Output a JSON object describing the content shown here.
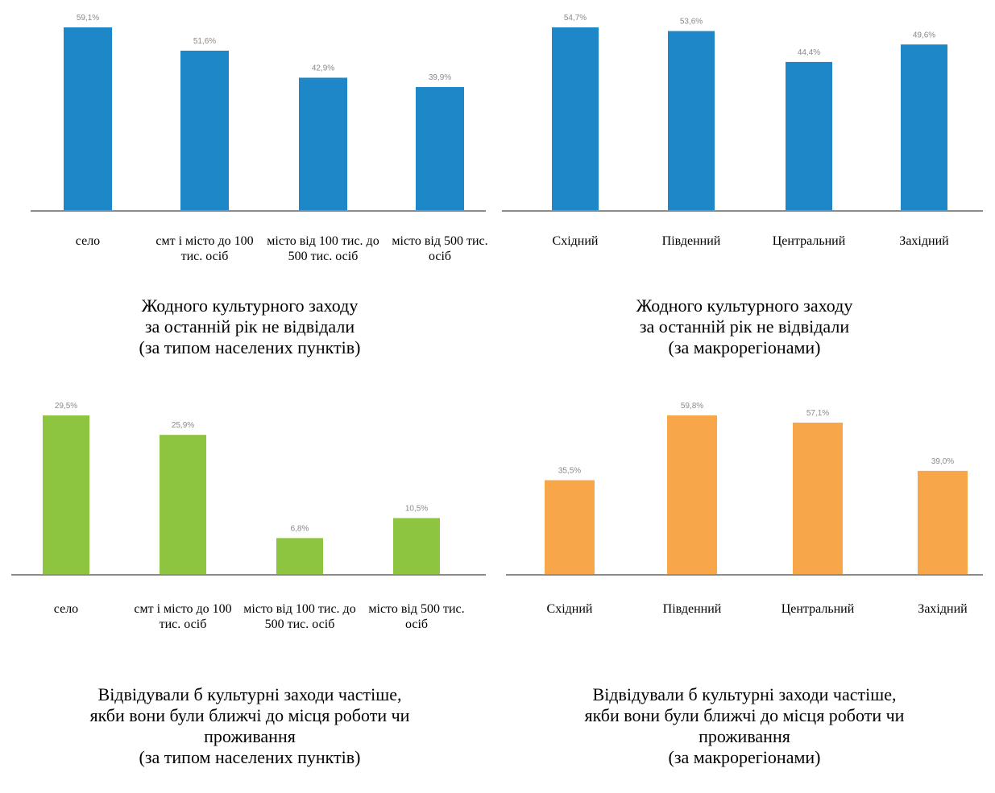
{
  "colors": {
    "blue": "#1e87c8",
    "green": "#8dc540",
    "orange": "#f7a64a",
    "axis": "#8c8c8c"
  },
  "chart_data": [
    {
      "type": "bar",
      "categories": [
        "село",
        "смт і місто до 100 тис. осіб",
        "місто від 100 тис. до 500 тис. осіб",
        "місто від 500 тис. осіб"
      ],
      "values": [
        59.1,
        51.6,
        42.9,
        39.9
      ],
      "value_labels": [
        "59,1%",
        "51,6%",
        "42,9%",
        "39,9%"
      ],
      "title_lines": [
        "Жодного культурного заходу",
        "за останній рік не відвідали",
        "(за типом населених пунктів)"
      ],
      "ylim": [
        0,
        66
      ],
      "color": "#1e87c8",
      "grid": false
    },
    {
      "type": "bar",
      "categories": [
        "Східний",
        "Південний",
        "Центральний",
        "Західний"
      ],
      "values": [
        54.7,
        53.6,
        44.4,
        49.6
      ],
      "value_labels": [
        "54,7%",
        "53,6%",
        "44,4%",
        "49,6%"
      ],
      "title_lines": [
        "Жодного культурного заходу",
        "за останній рік не відвідали",
        "(за макрорегіонами)"
      ],
      "ylim": [
        0,
        66
      ],
      "color": "#1e87c8",
      "grid": false
    },
    {
      "type": "bar",
      "categories": [
        "село",
        "смт і місто до 100 тис. осіб",
        "місто від 100 тис. до 500 тис. осіб",
        "місто від 500 тис. осіб"
      ],
      "values": [
        29.5,
        25.9,
        6.8,
        10.5
      ],
      "value_labels": [
        "29,5%",
        "25,9%",
        "6,8%",
        "10,5%"
      ],
      "title_lines": [
        "Відвідували б культурні заходи частіше,",
        "якби вони були ближчі до місця роботи чи",
        "проживання",
        "(за типом населених пунктів)"
      ],
      "ylim": [
        0,
        32.7
      ],
      "color": "#8dc540",
      "grid": false
    },
    {
      "type": "bar",
      "categories": [
        "Східний",
        "Південний",
        "Центральний",
        "Західний"
      ],
      "values": [
        35.5,
        59.8,
        57.1,
        39.0
      ],
      "value_labels": [
        "35,5%",
        "59,8%",
        "57,1%",
        "39,0%"
      ],
      "title_lines": [
        "Відвідували б культурні заходи частіше,",
        "якби вони були ближчі до місця роботи чи",
        "проживання",
        "(за макрорегіонами)"
      ],
      "ylim": [
        0,
        66.3
      ],
      "color": "#f7a64a",
      "grid": false
    }
  ]
}
